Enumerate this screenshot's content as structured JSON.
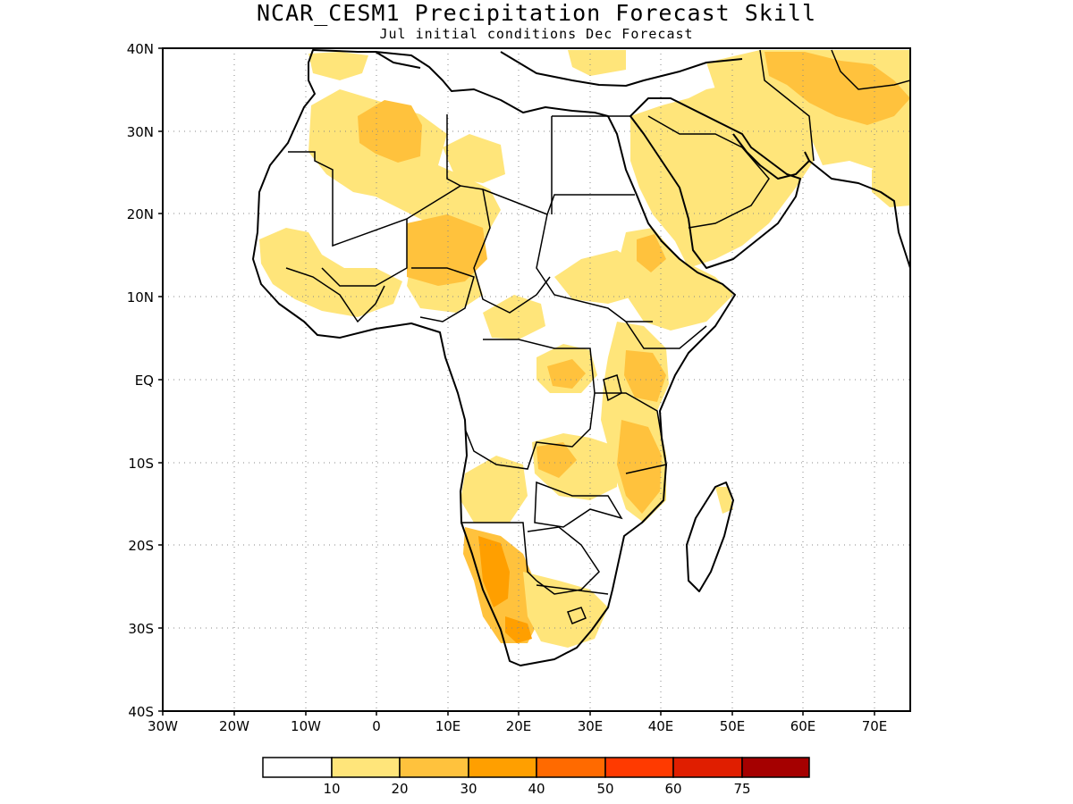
{
  "title": "NCAR_CESM1 Precipitation Forecast Skill",
  "subtitle": "Jul initial conditions   Dec Forecast",
  "map": {
    "lon_range": [
      -30,
      75
    ],
    "lat_range": [
      -40,
      40
    ],
    "lon_labels": [
      "30W",
      "20W",
      "10W",
      "0",
      "10E",
      "20E",
      "30E",
      "40E",
      "50E",
      "60E",
      "70E"
    ],
    "lat_labels": [
      "40N",
      "30N",
      "20N",
      "10N",
      "EQ",
      "10S",
      "20S",
      "30S",
      "40S"
    ],
    "grid": "dotted"
  },
  "legend": {
    "labels": [
      "10",
      "20",
      "30",
      "40",
      "50",
      "60",
      "75"
    ],
    "colors": [
      "#ffffff",
      "#ffe57a",
      "#ffc23d",
      "#ff9f00",
      "#ff6a00",
      "#ff3a00",
      "#e01e00",
      "#a50000"
    ]
  }
}
